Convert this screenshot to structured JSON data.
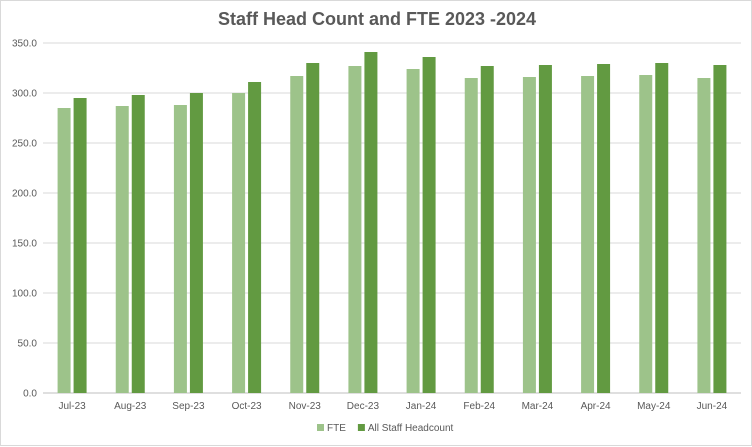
{
  "chart_data": {
    "type": "bar",
    "title": "Staff Head Count and FTE 2023 -2024",
    "xlabel": "",
    "ylabel": "",
    "categories": [
      "Jul-23",
      "Aug-23",
      "Sep-23",
      "Oct-23",
      "Nov-23",
      "Dec-23",
      "Jan-24",
      "Feb-24",
      "Mar-24",
      "Apr-24",
      "May-24",
      "Jun-24"
    ],
    "series": [
      {
        "name": "FTE",
        "color": "#9dc38a",
        "values": [
          285,
          287,
          288,
          300,
          317,
          327,
          324,
          315,
          316,
          317,
          318,
          315
        ]
      },
      {
        "name": "All Staff Headcount",
        "color": "#629a41",
        "values": [
          295,
          298,
          300,
          311,
          330,
          341,
          336,
          327,
          328,
          329,
          330,
          328
        ]
      }
    ],
    "ylim": [
      0,
      350
    ],
    "yticks": [
      "0.0",
      "50.0",
      "100.0",
      "150.0",
      "200.0",
      "250.0",
      "300.0",
      "350.0"
    ],
    "grid": true,
    "legend_position": "bottom"
  }
}
